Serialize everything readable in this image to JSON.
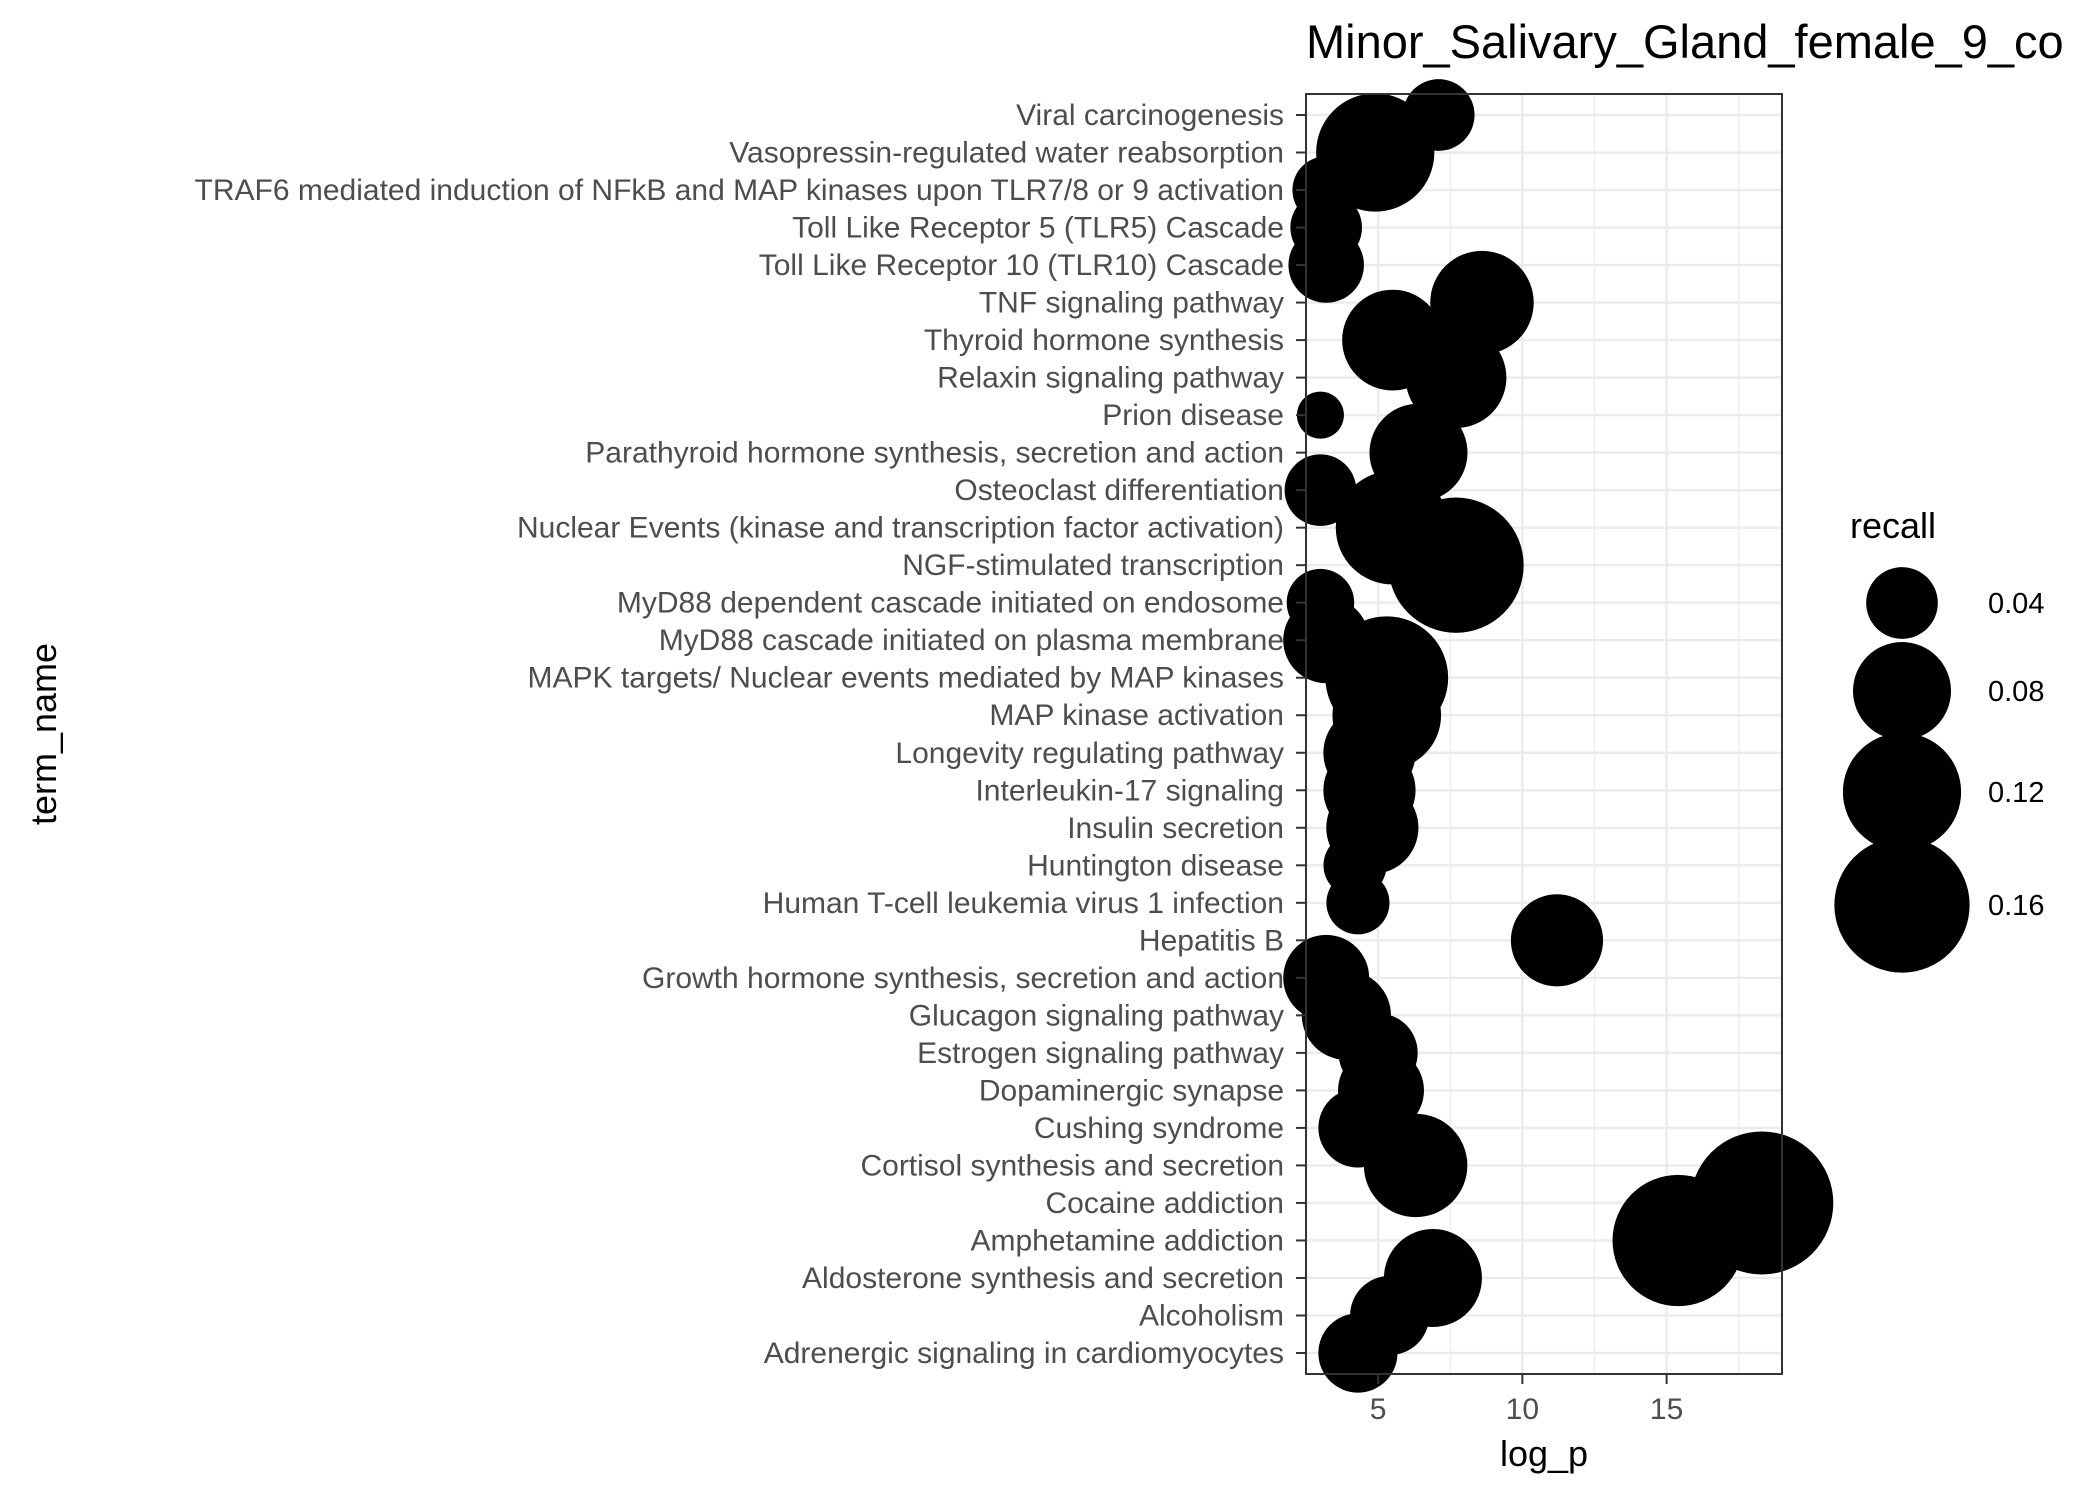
{
  "chart_data": {
    "type": "scatter",
    "title": "Minor_Salivary_Gland_female_9_co",
    "xlabel": "log_p",
    "ylabel": "term_name",
    "xlim": [
      2.5,
      19
    ],
    "x_ticks": [
      5,
      10,
      15
    ],
    "grid": true,
    "size_legend": {
      "title": "recall",
      "values": [
        0.04,
        0.08,
        0.12,
        0.16
      ],
      "labels": [
        "0.04",
        "0.08",
        "0.12",
        "0.16"
      ],
      "position": "right"
    },
    "point_color": "#000000",
    "points": [
      {
        "term": "Viral carcinogenesis",
        "log_p": 7.1,
        "recall": 0.04
      },
      {
        "term": "Vasopressin-regulated water reabsorption",
        "log_p": 4.9,
        "recall": 0.12
      },
      {
        "term": "TRAF6 mediated induction of NFkB and MAP kinases upon TLR7/8 or 9 activation",
        "log_p": 3.2,
        "recall": 0.035
      },
      {
        "term": "Toll Like Receptor 5 (TLR5) Cascade",
        "log_p": 3.2,
        "recall": 0.04
      },
      {
        "term": "Toll Like Receptor 10 (TLR10) Cascade",
        "log_p": 3.2,
        "recall": 0.045
      },
      {
        "term": "TNF signaling pathway",
        "log_p": 8.6,
        "recall": 0.09
      },
      {
        "term": "Thyroid hormone synthesis",
        "log_p": 5.5,
        "recall": 0.085
      },
      {
        "term": "Relaxin signaling pathway",
        "log_p": 7.7,
        "recall": 0.085
      },
      {
        "term": "Prion disease",
        "log_p": 3.0,
        "recall": 0.015
      },
      {
        "term": "Parathyroid hormone synthesis, secretion and action",
        "log_p": 6.4,
        "recall": 0.08
      },
      {
        "term": "Osteoclast differentiation",
        "log_p": 3.0,
        "recall": 0.04
      },
      {
        "term": "Nuclear Events (kinase and transcription factor activation)",
        "log_p": 5.5,
        "recall": 0.11
      },
      {
        "term": "NGF-stimulated transcription",
        "log_p": 7.7,
        "recall": 0.16
      },
      {
        "term": "MyD88 dependent cascade initiated on endosome",
        "log_p": 3.0,
        "recall": 0.035
      },
      {
        "term": "MyD88 cascade initiated on plasma membrane",
        "log_p": 3.2,
        "recall": 0.06
      },
      {
        "term": "MAPK targets/ Nuclear events mediated by MAP kinases",
        "log_p": 5.3,
        "recall": 0.13
      },
      {
        "term": "MAP kinase activation",
        "log_p": 5.3,
        "recall": 0.1
      },
      {
        "term": "Longevity regulating pathway",
        "log_p": 4.7,
        "recall": 0.07
      },
      {
        "term": "Interleukin-17 signaling",
        "log_p": 4.7,
        "recall": 0.07
      },
      {
        "term": "Insulin secretion",
        "log_p": 4.8,
        "recall": 0.07
      },
      {
        "term": "Huntington disease",
        "log_p": 4.2,
        "recall": 0.03
      },
      {
        "term": "Human T-cell leukemia virus 1 infection",
        "log_p": 4.3,
        "recall": 0.03
      },
      {
        "term": "Hepatitis B",
        "log_p": 11.2,
        "recall": 0.07
      },
      {
        "term": "Growth hormone synthesis, secretion and action",
        "log_p": 3.2,
        "recall": 0.06
      },
      {
        "term": "Glucagon signaling pathway",
        "log_p": 3.9,
        "recall": 0.065
      },
      {
        "term": "Estrogen signaling pathway",
        "log_p": 5.0,
        "recall": 0.05
      },
      {
        "term": "Dopaminergic synapse",
        "log_p": 5.1,
        "recall": 0.06
      },
      {
        "term": "Cushing syndrome",
        "log_p": 4.3,
        "recall": 0.05
      },
      {
        "term": "Cortisol synthesis and secretion",
        "log_p": 6.3,
        "recall": 0.09
      },
      {
        "term": "Cocaine addiction",
        "log_p": 18.3,
        "recall": 0.18
      },
      {
        "term": "Amphetamine addiction",
        "log_p": 15.4,
        "recall": 0.15
      },
      {
        "term": "Aldosterone synthesis and secretion",
        "log_p": 6.9,
        "recall": 0.08
      },
      {
        "term": "Alcoholism",
        "log_p": 5.4,
        "recall": 0.05
      },
      {
        "term": "Adrenergic signaling in cardiomyocytes",
        "log_p": 4.3,
        "recall": 0.05
      }
    ]
  }
}
